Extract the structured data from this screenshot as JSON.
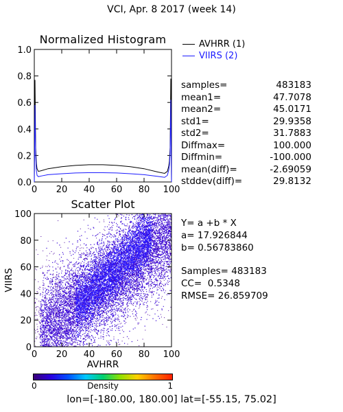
{
  "title": "VCI,  Apr. 8 2017 (week 14)",
  "colors": {
    "avhrr": "#000000",
    "viirs": "#1a1aff"
  },
  "histogram": {
    "title": "Normalized Histogram",
    "legend": [
      {
        "name": "AVHRR (1)",
        "color": "#000000"
      },
      {
        "name": "VIIRS (2)",
        "color": "#1a1aff"
      }
    ],
    "stats": [
      {
        "label": "samples=",
        "value": "483183"
      },
      {
        "label": "mean1=",
        "value": "47.7078"
      },
      {
        "label": "mean2=",
        "value": "45.0171"
      },
      {
        "label": "std1=",
        "value": "29.9358"
      },
      {
        "label": "std2=",
        "value": "31.7883"
      },
      {
        "label": "Diffmax=",
        "value": "100.000"
      },
      {
        "label": "Diffmin=",
        "value": "-100.000"
      },
      {
        "label": "mean(diff)=",
        "value": "-2.69059"
      },
      {
        "label": "stddev(diff)=",
        "value": "29.8132"
      }
    ]
  },
  "scatter": {
    "title": "Scatter Plot",
    "fit_lines": [
      "Y= a +b * X",
      "a= 17.926844",
      "b= 0.56783860"
    ],
    "summary_lines": [
      "Samples= 483183",
      "CC=  0.5348",
      "RMSE= 26.859709"
    ],
    "colorbar": {
      "min": "0",
      "max": "1",
      "label": "Density"
    }
  },
  "footer": "lon=[-180.00, 180.00] lat=[-55.15, 75.02]",
  "chart_data": [
    {
      "type": "line",
      "title": "Normalized Histogram",
      "xlim": [
        0,
        100
      ],
      "ylim": [
        0,
        1.0
      ],
      "xticks": [
        "0",
        "20",
        "40",
        "60",
        "80",
        "100"
      ],
      "yticks": [
        "0.0",
        "0.2",
        "0.4",
        "0.6",
        "0.8",
        "1.0"
      ],
      "x": [
        0,
        0.5,
        1,
        1.5,
        2,
        3,
        5,
        10,
        20,
        30,
        40,
        50,
        60,
        70,
        80,
        90,
        95,
        97,
        98,
        98.5,
        99,
        99.5,
        100
      ],
      "series": [
        {
          "name": "AVHRR (1)",
          "color": "#000000",
          "values": [
            0.0,
            0.77,
            0.26,
            0.14,
            0.1,
            0.08,
            0.085,
            0.1,
            0.115,
            0.125,
            0.13,
            0.13,
            0.125,
            0.115,
            0.1,
            0.075,
            0.065,
            0.08,
            0.12,
            0.16,
            0.26,
            0.78,
            0.0
          ]
        },
        {
          "name": "VIIRS (2)",
          "color": "#1a1aff",
          "values": [
            0.0,
            0.58,
            0.2,
            0.09,
            0.05,
            0.04,
            0.045,
            0.055,
            0.062,
            0.068,
            0.07,
            0.07,
            0.068,
            0.062,
            0.055,
            0.042,
            0.035,
            0.05,
            0.09,
            0.13,
            0.22,
            0.62,
            0.0
          ]
        }
      ]
    },
    {
      "type": "scatter",
      "title": "Scatter Plot",
      "xlabel": "AVHRR",
      "ylabel": "VIIRS",
      "xlim": [
        0,
        100
      ],
      "ylim": [
        0,
        100
      ],
      "xticks": [
        "0",
        "20",
        "40",
        "60",
        "80",
        "100"
      ],
      "yticks": [
        "0",
        "20",
        "40",
        "60",
        "80",
        "100"
      ],
      "fit": {
        "a": 17.926844,
        "b": 0.5678386
      },
      "samples": 483183,
      "cc": 0.5348,
      "colorbar_range": [
        0,
        1
      ]
    }
  ]
}
